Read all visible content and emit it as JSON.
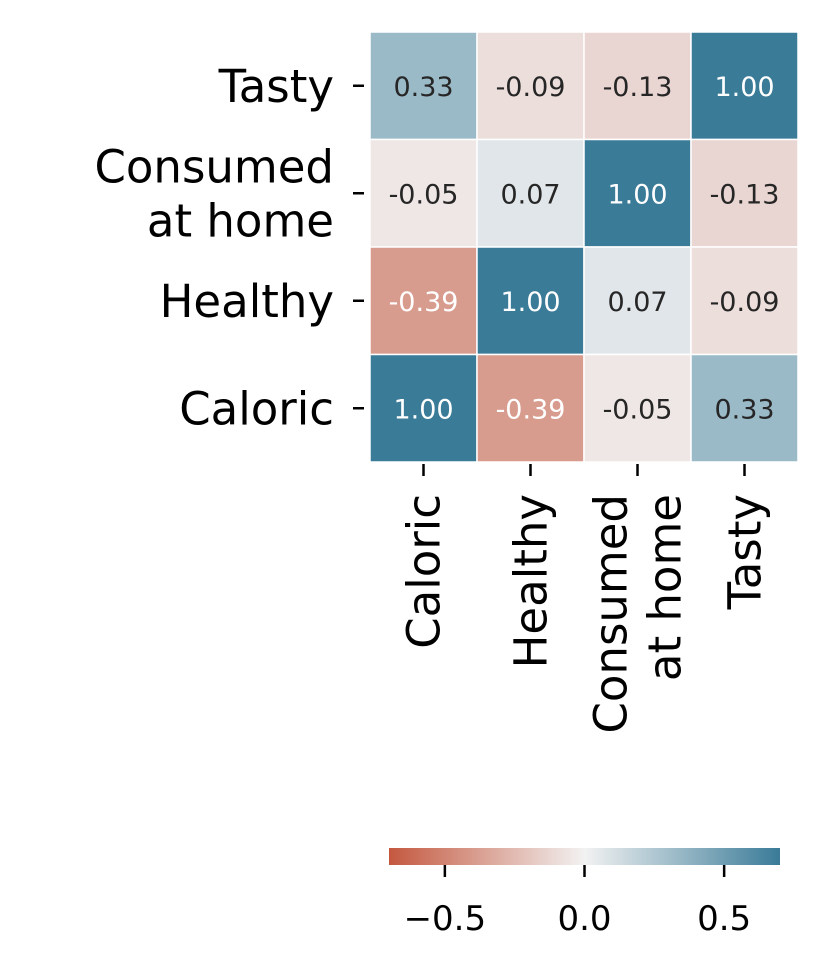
{
  "chart_data": {
    "type": "heatmap",
    "title": "",
    "xlabel": "",
    "ylabel": "",
    "x_categories": [
      [
        "Caloric"
      ],
      [
        "Healthy"
      ],
      [
        "Consumed",
        "at home"
      ],
      [
        "Tasty"
      ]
    ],
    "y_categories_top_to_bottom": [
      [
        "Tasty"
      ],
      [
        "Consumed",
        "at home"
      ],
      [
        "Healthy"
      ],
      [
        "Caloric"
      ]
    ],
    "matrix_rows_top_to_bottom": [
      [
        0.33,
        -0.09,
        -0.13,
        1.0
      ],
      [
        -0.05,
        0.07,
        1.0,
        -0.13
      ],
      [
        -0.39,
        1.0,
        0.07,
        -0.09
      ],
      [
        1.0,
        -0.39,
        -0.05,
        0.33
      ]
    ],
    "cell_labels_top_to_bottom": [
      [
        "0.33",
        "-0.09",
        "-0.13",
        "1.00"
      ],
      [
        "-0.05",
        "0.07",
        "1.00",
        "-0.13"
      ],
      [
        "-0.39",
        "1.00",
        "0.07",
        "-0.09"
      ],
      [
        "1.00",
        "-0.39",
        "-0.05",
        "0.33"
      ]
    ],
    "colorbar": {
      "vmin": -0.7,
      "vmax": 0.7,
      "ticks": [
        -0.5,
        0.0,
        0.5
      ],
      "tick_labels": [
        "−0.5",
        "0.0",
        "0.5"
      ],
      "orientation": "horizontal",
      "placement": "bottom"
    },
    "colormap": {
      "negative": "#c4583f",
      "center": "#f2f2f2",
      "positive": "#3a7b98"
    }
  }
}
